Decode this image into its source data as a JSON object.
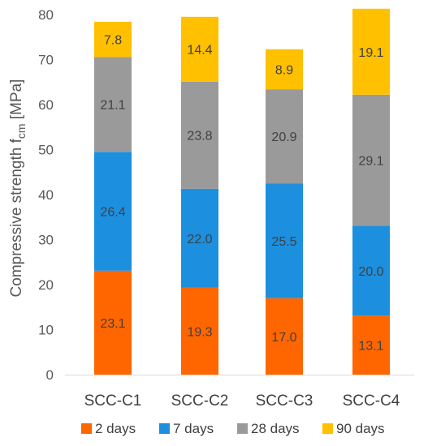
{
  "chart_data": {
    "type": "bar",
    "stacked": true,
    "categories": [
      "SCC-C1",
      "SCC-C2",
      "SCC-C3",
      "SCC-C4"
    ],
    "series": [
      {
        "name": "2 days",
        "color": "#ff6600",
        "values": [
          23.1,
          19.3,
          17.0,
          13.1
        ]
      },
      {
        "name": "7 days",
        "color": "#1c8fdf",
        "values": [
          26.4,
          22.0,
          25.5,
          20.0
        ]
      },
      {
        "name": "28 days",
        "color": "#9a9a9a",
        "values": [
          21.1,
          23.8,
          20.9,
          29.1
        ]
      },
      {
        "name": "90 days",
        "color": "#ffc000",
        "values": [
          7.8,
          14.4,
          8.9,
          19.1
        ]
      }
    ],
    "ylabel": {
      "main": "Compressive strength f",
      "sub": "cm",
      "unit": " [MPa]"
    },
    "ylim": [
      0,
      80
    ],
    "yticks": [
      0,
      10,
      20,
      30,
      40,
      50,
      60,
      70,
      80
    ],
    "grid": false,
    "legend": "bottom"
  }
}
